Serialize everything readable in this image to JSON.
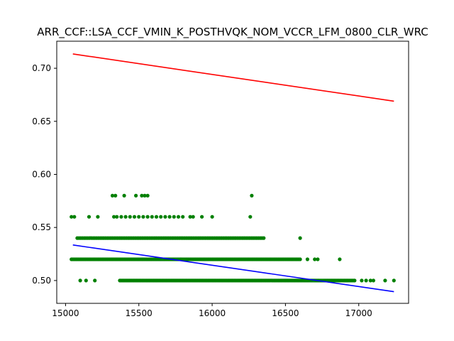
{
  "chart_data": {
    "type": "scatter",
    "title": "ARR_CCF::LSA_CCF_VMIN_K_POSTHVQK_NOM_VCCR_LFM_0800_CLR_WRC",
    "xlabel": "",
    "ylabel": "",
    "xlim": [
      14940,
      17340
    ],
    "ylim": [
      0.4785,
      0.7255
    ],
    "x_ticks": [
      15000,
      15500,
      16000,
      16500,
      17000
    ],
    "x_tick_labels": [
      "15000",
      "15500",
      "16000",
      "16500",
      "17000"
    ],
    "y_ticks": [
      0.5,
      0.55,
      0.6,
      0.65,
      0.7
    ],
    "y_tick_labels": [
      "0.50",
      "0.55",
      "0.60",
      "0.65",
      "0.70"
    ],
    "grid": false,
    "colors": {
      "points": "#008000",
      "upper_line": "#ff0000",
      "lower_line": "#0000ff"
    },
    "series": [
      {
        "name": "points",
        "kind": "scatter",
        "clusters": [
          {
            "y": 0.58,
            "x": [
              15320,
              15340,
              15400,
              15480,
              15520,
              15540,
              15560,
              16270
            ]
          },
          {
            "y": 0.56,
            "x": [
              15040,
              15060,
              15160,
              15220,
              15330,
              15350,
              15380,
              15410,
              15440,
              15470,
              15500,
              15530,
              15560,
              15590,
              15620,
              15650,
              15680,
              15710,
              15740,
              15770,
              15800,
              15850,
              15870,
              15930,
              16000,
              16260
            ]
          },
          {
            "y": 0.54,
            "x_range": [
              15080,
              16360
            ],
            "step": 12,
            "extra": [
              16600
            ]
          },
          {
            "y": 0.52,
            "x_range": [
              15040,
              16600
            ],
            "step": 10,
            "extra": [
              16650,
              16700,
              16720,
              16870
            ]
          },
          {
            "y": 0.5,
            "x_range": [
              15370,
              16980
            ],
            "step": 9,
            "extra": [
              15100,
              15140,
              15200,
              17020,
              17050,
              17080,
              17100,
              17180,
              17240
            ]
          }
        ]
      },
      {
        "name": "upper fit",
        "kind": "line",
        "x": [
          15050,
          17240
        ],
        "y": [
          0.7135,
          0.669
        ]
      },
      {
        "name": "lower fit",
        "kind": "line",
        "x": [
          15050,
          17240
        ],
        "y": [
          0.5335,
          0.4895
        ]
      }
    ]
  }
}
